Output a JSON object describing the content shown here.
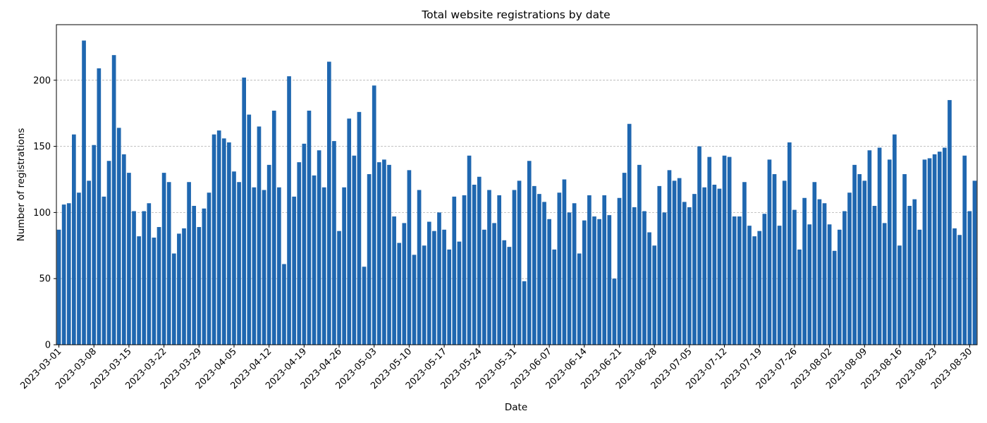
{
  "chart_data": {
    "type": "bar",
    "title": "Total website registrations by date",
    "xlabel": "Date",
    "ylabel": "Number of registrations",
    "start_date": "2023-03-01",
    "end_date": "2023-08-31",
    "ylim": [
      0,
      242
    ],
    "yticks": [
      0,
      50,
      100,
      150,
      200
    ],
    "xtick_labels": [
      "2023-03-01",
      "2023-03-08",
      "2023-03-15",
      "2023-03-22",
      "2023-03-29",
      "2023-04-05",
      "2023-04-12",
      "2023-04-19",
      "2023-04-26",
      "2023-05-03",
      "2023-05-10",
      "2023-05-17",
      "2023-05-24",
      "2023-05-31",
      "2023-06-07",
      "2023-06-14",
      "2023-06-21",
      "2023-06-28",
      "2023-07-05",
      "2023-07-12",
      "2023-07-19",
      "2023-07-26",
      "2023-08-02",
      "2023-08-09",
      "2023-08-16",
      "2023-08-23",
      "2023-08-30"
    ],
    "grid": "y-dashed",
    "bar_color": "#1f67b0",
    "values": [
      87,
      106,
      107,
      159,
      115,
      230,
      124,
      151,
      209,
      112,
      139,
      219,
      164,
      144,
      130,
      101,
      82,
      101,
      107,
      81,
      89,
      130,
      123,
      69,
      84,
      88,
      123,
      105,
      89,
      103,
      115,
      159,
      162,
      156,
      153,
      131,
      123,
      202,
      174,
      119,
      165,
      117,
      136,
      177,
      119,
      61,
      203,
      112,
      138,
      152,
      177,
      128,
      147,
      119,
      214,
      154,
      86,
      119,
      171,
      143,
      176,
      59,
      129,
      196,
      138,
      140,
      136,
      97,
      77,
      92,
      132,
      68,
      117,
      75,
      93,
      86,
      100,
      87,
      72,
      112,
      78,
      113,
      143,
      121,
      127,
      87,
      117,
      92,
      113,
      79,
      74,
      117,
      124,
      48,
      139,
      120,
      114,
      108,
      95,
      72,
      115,
      125,
      100,
      107,
      69,
      94,
      113,
      97,
      95,
      113,
      98,
      50,
      111,
      130,
      167,
      104,
      136,
      101,
      85,
      75,
      120,
      100,
      132,
      124,
      126,
      108,
      104,
      114,
      150,
      119,
      142,
      121,
      118,
      143,
      142,
      97,
      97,
      123,
      90,
      82,
      86,
      99,
      140,
      129,
      90,
      124,
      153,
      102,
      72,
      111,
      91,
      123,
      110,
      107,
      91,
      71,
      87,
      101,
      115,
      136,
      129,
      124,
      147,
      105,
      149,
      92,
      140,
      159,
      75,
      129,
      105,
      110,
      87,
      140,
      141,
      144,
      146,
      149,
      185,
      88,
      83,
      143,
      101,
      124
    ]
  }
}
